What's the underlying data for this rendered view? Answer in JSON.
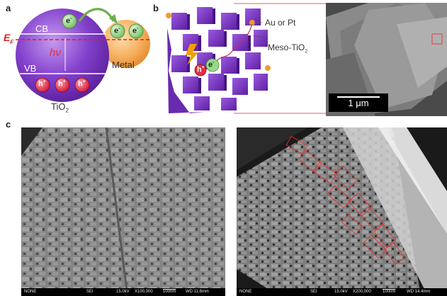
{
  "panel_a": {
    "label": "a",
    "cb": "CB",
    "vb": "VB",
    "ef": "E",
    "ef_sub": "F",
    "hv": "hν",
    "electron": "e",
    "electron_sup": "-",
    "hole": "h",
    "hole_sup": "+",
    "tio2": "TiO",
    "tio2_sub": "2",
    "metal": "Metal",
    "colors": {
      "tio2": "#7a35c4",
      "metal": "#f2a040",
      "ef_line": "#e02020",
      "electron": "#8ad07a",
      "hole": "#e03040"
    }
  },
  "panel_b": {
    "label": "b",
    "au_pt": "Au or Pt",
    "meso": "Meso-TiO",
    "meso_sub": "2",
    "electron": "e",
    "electron_sup": "-",
    "hole": "h",
    "hole_sup": "+",
    "scale_bar": "1 μm",
    "colors": {
      "block": "#7a35c4",
      "particle": "#f09a30",
      "bolt": "#f0a000",
      "zoom_line": "#e06060"
    }
  },
  "panel_c": {
    "label": "c",
    "left_info": {
      "name": "NONE",
      "mode": "SEI",
      "kv": "15.0kV",
      "mag": "X100,000",
      "scale": "100nm",
      "wd": "WD 11.8mm"
    },
    "right_info": {
      "name": "NONE",
      "mode": "SEI",
      "kv": "15.0kV",
      "mag": "X200,000",
      "scale": "100nm",
      "wd": "WD 14.4mm"
    },
    "colors": {
      "outline": "#e03030"
    }
  }
}
